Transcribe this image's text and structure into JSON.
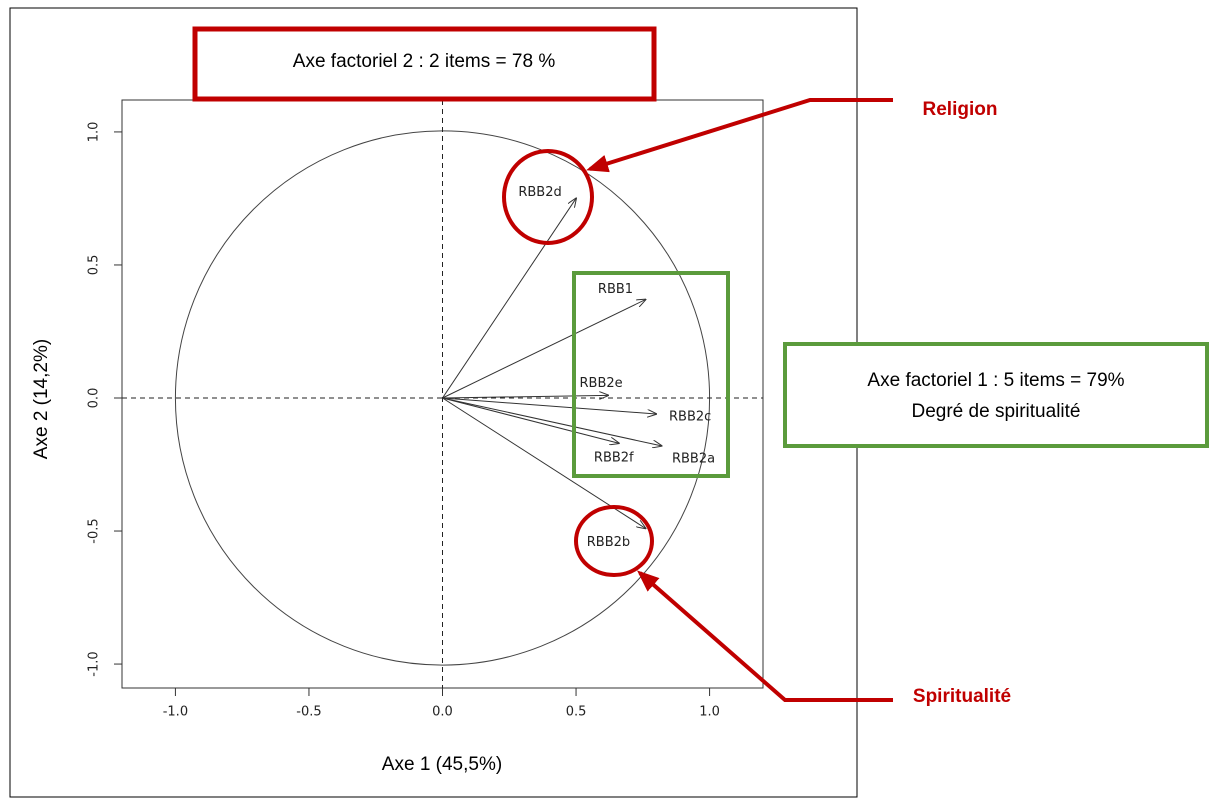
{
  "chart_data": {
    "type": "arrow",
    "x_label": "Axe 1 (45,5%)",
    "y_label": "Axe 2 (14,2%)",
    "categories": [
      "RBB2d",
      "RBB1",
      "RBB2e",
      "RBB2c",
      "RBB2a",
      "RBB2f",
      "RBB2b"
    ],
    "x": [
      0.5,
      0.76,
      0.62,
      0.8,
      0.82,
      0.66,
      0.76
    ],
    "values": [
      0.75,
      0.37,
      0.01,
      -0.06,
      -0.18,
      -0.17,
      -0.49
    ],
    "color": "#333333",
    "xlim": [
      -1.2,
      1.2
    ],
    "ylim": [
      -1.09,
      1.12
    ],
    "xticks": [
      {
        "value": -1,
        "label": "-1.0"
      },
      -0.5,
      {
        "value": 0,
        "label": "0.0"
      },
      0.5,
      {
        "value": 1,
        "label": "1.0"
      }
    ],
    "yticks": [
      {
        "value": -1,
        "label": "-1.0"
      },
      -0.5,
      {
        "value": 0,
        "label": "0.0"
      },
      0.5,
      {
        "value": 1,
        "label": "1.0"
      }
    ],
    "annotations": {
      "axis2_box": "Axe factoriel 2 : 2 items = 78 %",
      "axis1_box": [
        "Axe factoriel 1 : 5 items = 79%",
        "Degré de spiritualité"
      ],
      "religion": "Religion",
      "spiritualite": "Spiritualité"
    }
  }
}
